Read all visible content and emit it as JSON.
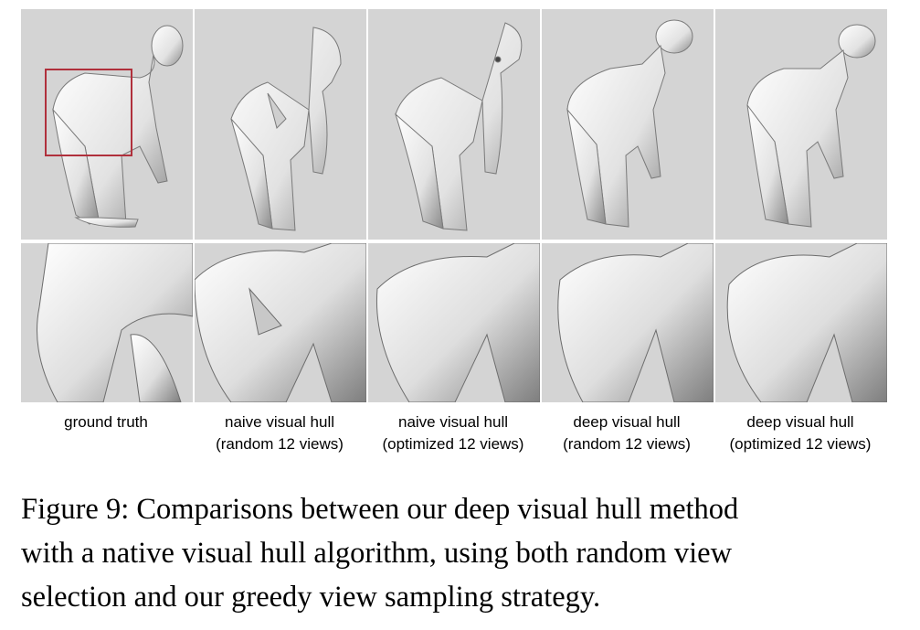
{
  "figure": {
    "columns": [
      {
        "label_line1": "ground truth",
        "label_line2": ""
      },
      {
        "label_line1": "naive visual hull",
        "label_line2": "(random 12 views)"
      },
      {
        "label_line1": "naive visual hull",
        "label_line2": "(optimized 12 views)"
      },
      {
        "label_line1": "deep visual hull",
        "label_line2": "(random 12 views)"
      },
      {
        "label_line1": "deep visual hull",
        "label_line2": "(optimized 12 views)"
      }
    ],
    "caption_lines": [
      "Figure 9: Comparisons between our deep visual hull method",
      "with a native visual hull algorithm, using both random view",
      "selection and our greedy view sampling strategy."
    ],
    "colors": {
      "background": "#d4d4d4",
      "highlight_box": "#b0303c"
    }
  }
}
